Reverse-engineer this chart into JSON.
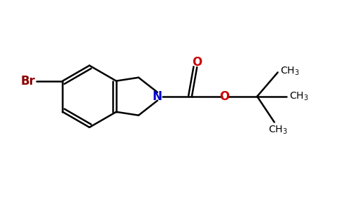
{
  "background_color": "#ffffff",
  "line_color": "#000000",
  "bond_width": 1.8,
  "atom_colors": {
    "N": "#0000cc",
    "O": "#cc0000",
    "Br": "#8b0000"
  },
  "font_size": 11
}
